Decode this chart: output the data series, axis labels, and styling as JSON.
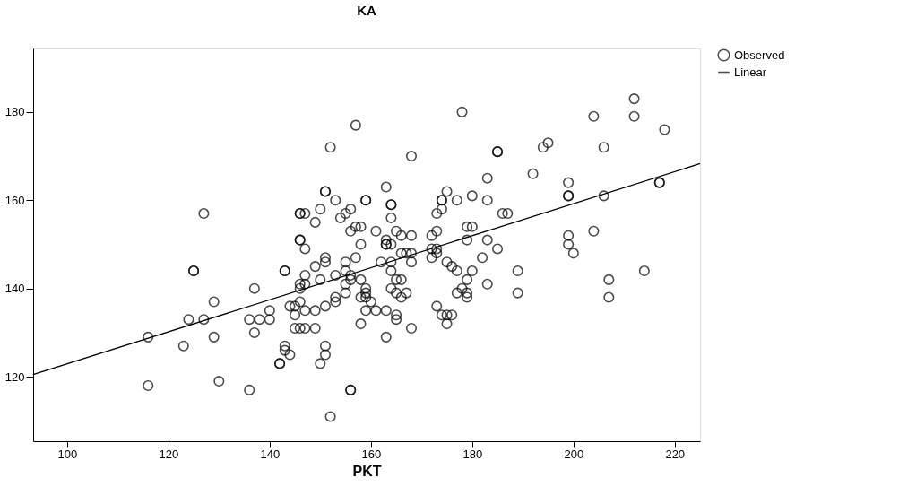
{
  "chart_data": {
    "type": "scatter",
    "title": "KA",
    "xlabel": "PKT",
    "xlim": [
      93.3,
      225
    ],
    "ylim": [
      105.4,
      194.4
    ],
    "xticks": [
      100,
      120,
      140,
      160,
      180,
      200,
      220
    ],
    "yticks": [
      120,
      140,
      160,
      180
    ],
    "grid": false,
    "legend": "top right",
    "series": [
      {
        "name": "Observed",
        "color": "#000000",
        "marker": "circle",
        "x": [
          127,
          125,
          125,
          143,
          143,
          137,
          129,
          116,
          124,
          127,
          136,
          138,
          140,
          140,
          137,
          129,
          123,
          143,
          143,
          144,
          142,
          142,
          116,
          130,
          136,
          146,
          146,
          144,
          145,
          145,
          145,
          146,
          147,
          149,
          178,
          157,
          152,
          168,
          185,
          185,
          183,
          163,
          151,
          151,
          175,
          153,
          159,
          159,
          164,
          164,
          174,
          174,
          177,
          180,
          183,
          150,
          156,
          146,
          146,
          147,
          155,
          154,
          164,
          173,
          174,
          149,
          157,
          158,
          156,
          161,
          165,
          166,
          168,
          172,
          173,
          179,
          180,
          146,
          146,
          147,
          158,
          163,
          163,
          163,
          164,
          179,
          183,
          185,
          166,
          167,
          168,
          172,
          173,
          173,
          172,
          151,
          151,
          155,
          157,
          149,
          147,
          150,
          153,
          156,
          155,
          158,
          156,
          162,
          164,
          168,
          164,
          165,
          166,
          175,
          176,
          177,
          180,
          182,
          179,
          183,
          147,
          155,
          159,
          159,
          155,
          153,
          158,
          160,
          164,
          165,
          167,
          166,
          173,
          177,
          178,
          179,
          179,
          146,
          151,
          153,
          159,
          147,
          149,
          159,
          161,
          163,
          165,
          165,
          158,
          168,
          163,
          174,
          175,
          176,
          175,
          151,
          151,
          150,
          156,
          156,
          152,
          212,
          212,
          204,
          218,
          195,
          194,
          206,
          192,
          199,
          199,
          199,
          206,
          217,
          217,
          186,
          187,
          204,
          199,
          199,
          200,
          189,
          189,
          207,
          207,
          214
        ],
        "values": [
          157,
          144,
          144,
          144,
          144,
          140,
          137,
          129,
          133,
          133,
          133,
          133,
          133,
          135,
          130,
          129,
          127,
          127,
          126,
          125,
          123,
          123,
          118,
          119,
          117,
          141,
          140,
          136,
          134,
          136,
          131,
          131,
          131,
          131,
          180,
          177,
          172,
          170,
          171,
          171,
          165,
          163,
          162,
          162,
          162,
          160,
          160,
          160,
          159,
          159,
          160,
          160,
          160,
          161,
          160,
          158,
          158,
          157,
          157,
          157,
          157,
          156,
          156,
          157,
          158,
          155,
          154,
          154,
          153,
          153,
          153,
          152,
          152,
          152,
          153,
          154,
          154,
          151,
          151,
          149,
          150,
          151,
          150,
          150,
          150,
          151,
          151,
          149,
          148,
          148,
          148,
          149,
          149,
          148,
          147,
          147,
          146,
          146,
          147,
          145,
          143,
          142,
          143,
          143,
          144,
          142,
          142,
          146,
          146,
          146,
          144,
          142,
          142,
          146,
          145,
          144,
          144,
          147,
          142,
          141,
          141,
          141,
          140,
          139,
          139,
          138,
          138,
          137,
          140,
          139,
          139,
          138,
          136,
          139,
          140,
          139,
          138,
          137,
          136,
          137,
          138,
          135,
          135,
          135,
          135,
          135,
          134,
          133,
          132,
          131,
          129,
          134,
          134,
          134,
          132,
          127,
          125,
          123,
          117,
          117,
          111,
          183,
          179,
          179,
          176,
          173,
          172,
          172,
          166,
          164,
          161,
          161,
          161,
          164,
          164,
          157,
          157,
          153,
          152,
          150,
          148,
          144,
          139,
          142,
          138,
          144
        ]
      },
      {
        "name": "Linear",
        "type": "line",
        "color": "#000000",
        "marker": "none",
        "line_style": "solid",
        "x": [
          93.3,
          225
        ],
        "values": [
          120.5,
          168.3
        ]
      }
    ]
  }
}
